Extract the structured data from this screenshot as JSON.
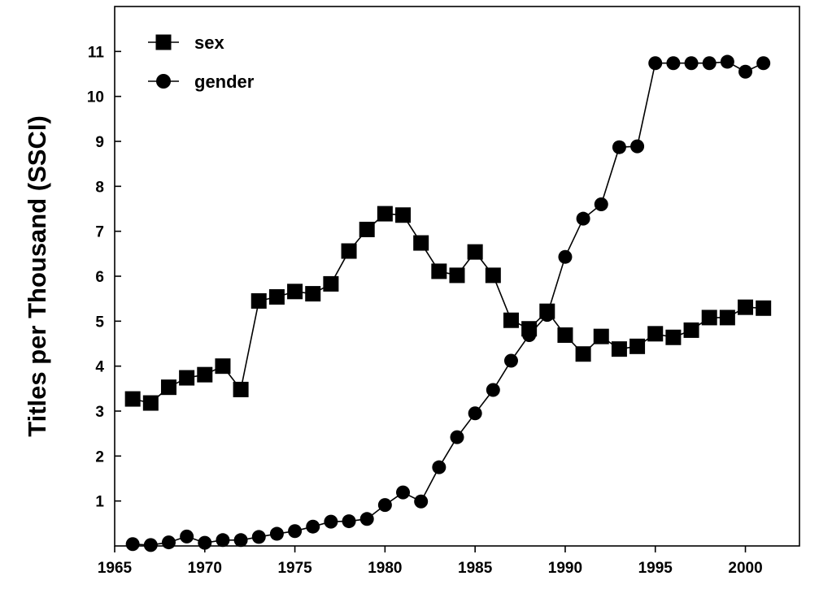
{
  "chart_data": {
    "type": "line",
    "title": "",
    "xlabel": "",
    "ylabel": "Titles per Thousand (SSCI)",
    "xlim": [
      1965,
      2003
    ],
    "ylim": [
      0,
      12
    ],
    "x_ticks": [
      1965,
      1970,
      1975,
      1980,
      1985,
      1990,
      1995,
      2000
    ],
    "y_ticks": [
      1,
      2,
      3,
      4,
      5,
      6,
      7,
      8,
      9,
      10,
      11
    ],
    "grid": false,
    "legend_position": "top-left",
    "x": [
      1966,
      1967,
      1968,
      1969,
      1970,
      1971,
      1972,
      1973,
      1974,
      1975,
      1976,
      1977,
      1978,
      1979,
      1980,
      1981,
      1982,
      1983,
      1984,
      1985,
      1986,
      1987,
      1988,
      1989,
      1990,
      1991,
      1992,
      1993,
      1994,
      1995,
      1996,
      1997,
      1998,
      1999,
      2000,
      2001
    ],
    "series": [
      {
        "name": "sex",
        "marker": "square",
        "color": "#000000",
        "values": [
          3.27,
          3.18,
          3.53,
          3.74,
          3.81,
          4.0,
          3.48,
          5.45,
          5.54,
          5.66,
          5.61,
          5.83,
          6.56,
          7.04,
          7.39,
          7.36,
          6.74,
          6.11,
          6.02,
          6.54,
          6.02,
          5.02,
          4.83,
          5.22,
          4.69,
          4.27,
          4.66,
          4.38,
          4.44,
          4.72,
          4.64,
          4.8,
          5.08,
          5.08,
          5.31,
          5.29
        ]
      },
      {
        "name": "gender",
        "marker": "circle",
        "color": "#000000",
        "values": [
          0.04,
          0.02,
          0.08,
          0.21,
          0.07,
          0.13,
          0.13,
          0.2,
          0.27,
          0.33,
          0.43,
          0.54,
          0.55,
          0.6,
          0.91,
          1.19,
          0.99,
          1.75,
          2.42,
          2.95,
          3.47,
          4.12,
          4.69,
          5.14,
          6.43,
          7.28,
          7.6,
          8.87,
          8.89,
          10.74,
          10.74,
          10.74,
          10.74,
          10.77,
          10.55,
          10.74
        ]
      }
    ]
  }
}
